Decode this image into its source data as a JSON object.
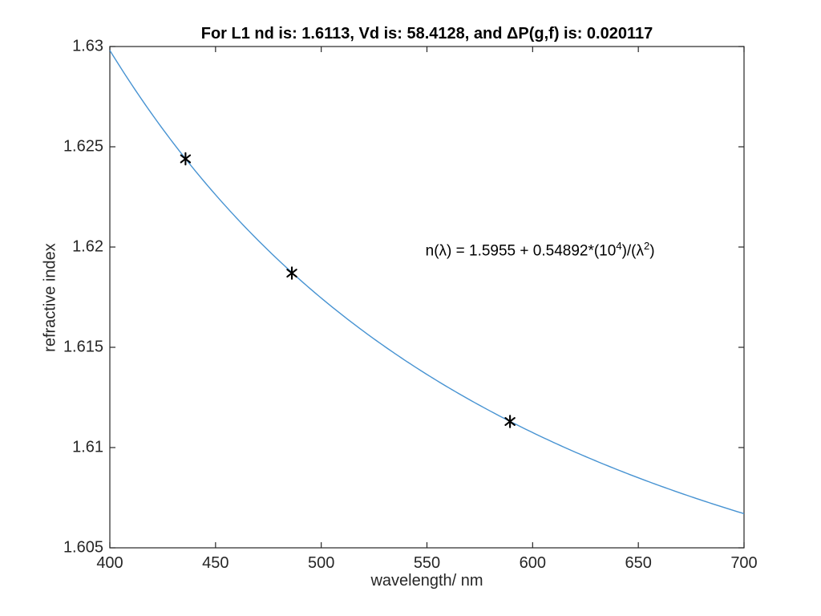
{
  "chart_data": {
    "type": "line",
    "title": "For L1 nd is: 1.6113, Vd is: 58.4128, and ΔP(g,f) is: 0.020117",
    "xlabel": "wavelength/ nm",
    "ylabel": "refractive index",
    "xlim": [
      400,
      700
    ],
    "ylim": [
      1.605,
      1.63
    ],
    "x_ticks": [
      400,
      450,
      500,
      550,
      600,
      650,
      700
    ],
    "x_tick_labels": [
      "400",
      "450",
      "500",
      "550",
      "600",
      "650",
      "700"
    ],
    "y_ticks": [
      1.605,
      1.61,
      1.615,
      1.62,
      1.625,
      1.63
    ],
    "y_tick_labels": [
      "1.605",
      "1.61",
      "1.615",
      "1.62",
      "1.625",
      "1.63"
    ],
    "grid": false,
    "legend": "none",
    "frame_color": "#262626",
    "background_color": "#ffffff",
    "series": [
      {
        "name": "cauchy-fit-curve",
        "type": "function-line",
        "equation": "n(lambda) = A + B/lambda^2",
        "A": 1.5955,
        "B": 5489.2,
        "x_range": [
          400,
          700
        ],
        "color": "#4793d2",
        "line_width": 1.4
      },
      {
        "name": "spectral-line-data-points",
        "type": "scatter",
        "marker": "asterisk",
        "color": "#000000",
        "x": [
          435.8,
          486.1,
          589.3
        ],
        "y": [
          1.6244,
          1.6187,
          1.6113
        ]
      }
    ],
    "annotation": {
      "text": "n(λ) = 1.5955 + 0.54892*(10^4)/(λ^2)",
      "parts": {
        "pre": "n(λ) = 1.5955 + 0.54892*(10",
        "sup1": "4",
        "mid": ")/(λ",
        "sup2": "2",
        "post": ")"
      },
      "x": 549.3,
      "y": 1.62035
    }
  }
}
